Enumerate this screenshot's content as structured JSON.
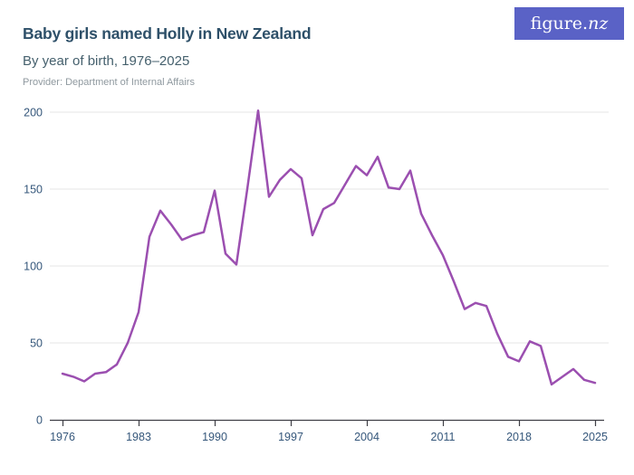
{
  "header": {
    "title": "Baby girls named Holly in New Zealand",
    "subtitle": "By year of birth, 1976–2025",
    "provider": "Provider: Department of Internal Affairs"
  },
  "logo": {
    "text_main": "figure.",
    "text_accent": "nz"
  },
  "colors": {
    "line": "#9b4fb0",
    "logo_bg": "#5a62c6",
    "title": "#2e5069",
    "subtitle": "#45606d",
    "provider": "#8f999f",
    "axis_label": "#35577b",
    "gridline": "#e4e4e4",
    "axis_line": "#3f3f46"
  },
  "chart_data": {
    "type": "line",
    "title": "Baby girls named Holly in New Zealand",
    "subtitle": "By year of birth, 1976–2025",
    "series_name": "Baby girls named Holly",
    "x": [
      1976,
      1977,
      1978,
      1979,
      1980,
      1981,
      1982,
      1983,
      1984,
      1985,
      1986,
      1987,
      1988,
      1989,
      1990,
      1991,
      1992,
      1993,
      1994,
      1995,
      1996,
      1997,
      1998,
      1999,
      2000,
      2001,
      2002,
      2003,
      2004,
      2005,
      2006,
      2007,
      2008,
      2009,
      2010,
      2011,
      2012,
      2013,
      2014,
      2015,
      2016,
      2017,
      2018,
      2019,
      2020,
      2021,
      2022,
      2023,
      2024,
      2025
    ],
    "values": [
      30,
      28,
      25,
      30,
      31,
      36,
      50,
      70,
      119,
      136,
      127,
      117,
      120,
      122,
      149,
      108,
      101,
      150,
      201,
      145,
      156,
      163,
      157,
      120,
      137,
      141,
      153,
      165,
      159,
      171,
      151,
      150,
      162,
      134,
      120,
      107,
      90,
      72,
      76,
      74,
      56,
      41,
      38,
      51,
      48,
      23,
      28,
      33,
      26,
      24
    ],
    "xlabel": "",
    "ylabel": "",
    "ylim": [
      0,
      200
    ],
    "yticks": [
      0,
      50,
      100,
      150,
      200
    ],
    "xticks": [
      1976,
      1983,
      1990,
      1997,
      2004,
      2011,
      2018,
      2025
    ],
    "grid": "horizontal",
    "legend": "none",
    "line_color": "#9b4fb0"
  }
}
